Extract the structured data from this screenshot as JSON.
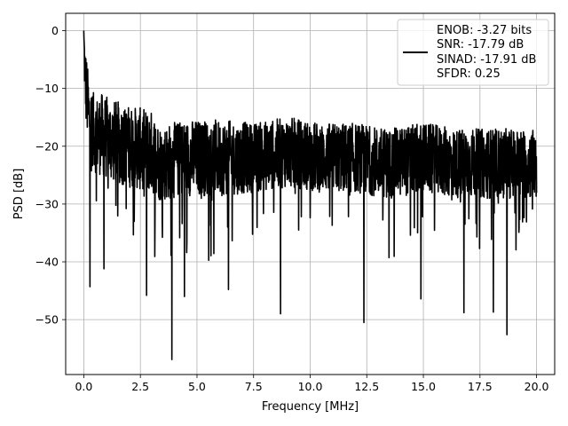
{
  "chart_data": {
    "type": "line",
    "title": "",
    "xlabel": "Frequency [MHz]",
    "ylabel": "PSD [dB]",
    "xlim": [
      -0.8,
      20.8
    ],
    "ylim": [
      -59.5,
      3
    ],
    "xticks": [
      0.0,
      2.5,
      5.0,
      7.5,
      10.0,
      12.5,
      15.0,
      17.5,
      20.0
    ],
    "xtick_labels": [
      "0.0",
      "2.5",
      "5.0",
      "7.5",
      "10.0",
      "12.5",
      "15.0",
      "17.5",
      "20.0"
    ],
    "yticks": [
      0,
      -10,
      -20,
      -30,
      -40,
      -50
    ],
    "ytick_labels": [
      "0",
      "−10",
      "−20",
      "−30",
      "−40",
      "−50"
    ],
    "grid": true,
    "legend": {
      "placement": "top-right",
      "entries": [
        "ENOB: -3.27 bits",
        "SNR: -17.79 dB",
        "SINAD: -17.91 dB",
        "SFDR: 0.25"
      ]
    },
    "series": [
      {
        "color": "#000000",
        "x": [
          0.0,
          0.03,
          0.06,
          0.1,
          0.15,
          0.2,
          0.3,
          0.5,
          0.8,
          1.2,
          2.0,
          3.0,
          3.4,
          4.5,
          6.0,
          7.5,
          9.0,
          10.5,
          12.0,
          13.5,
          15.0,
          16.5,
          18.0,
          19.5,
          20.0
        ],
        "y": [
          0,
          -5,
          -8,
          -10,
          -12,
          -14,
          -16,
          -18,
          -18,
          -19,
          -20,
          -21,
          -23,
          -22,
          -22,
          -22,
          -21,
          -22,
          -22,
          -23,
          -22,
          -23,
          -23,
          -23,
          -23
        ],
        "spread": [
          0,
          8,
          10,
          12,
          12,
          12,
          12,
          12,
          13,
          13,
          13,
          13,
          12,
          12,
          12,
          11,
          11,
          11,
          11,
          11,
          11,
          11,
          11,
          11,
          11
        ]
      }
    ],
    "notable_dips": [
      {
        "x": 0.28,
        "y": -44.3
      },
      {
        "x": 0.9,
        "y": -41.2
      },
      {
        "x": 2.78,
        "y": -45.8
      },
      {
        "x": 3.9,
        "y": -56.9
      },
      {
        "x": 4.45,
        "y": -46.0
      },
      {
        "x": 6.4,
        "y": -44.8
      },
      {
        "x": 8.7,
        "y": -49.0
      },
      {
        "x": 12.38,
        "y": -50.5
      },
      {
        "x": 14.9,
        "y": -46.4
      },
      {
        "x": 16.8,
        "y": -48.8
      },
      {
        "x": 18.1,
        "y": -48.7
      },
      {
        "x": 18.7,
        "y": -52.6
      }
    ]
  }
}
